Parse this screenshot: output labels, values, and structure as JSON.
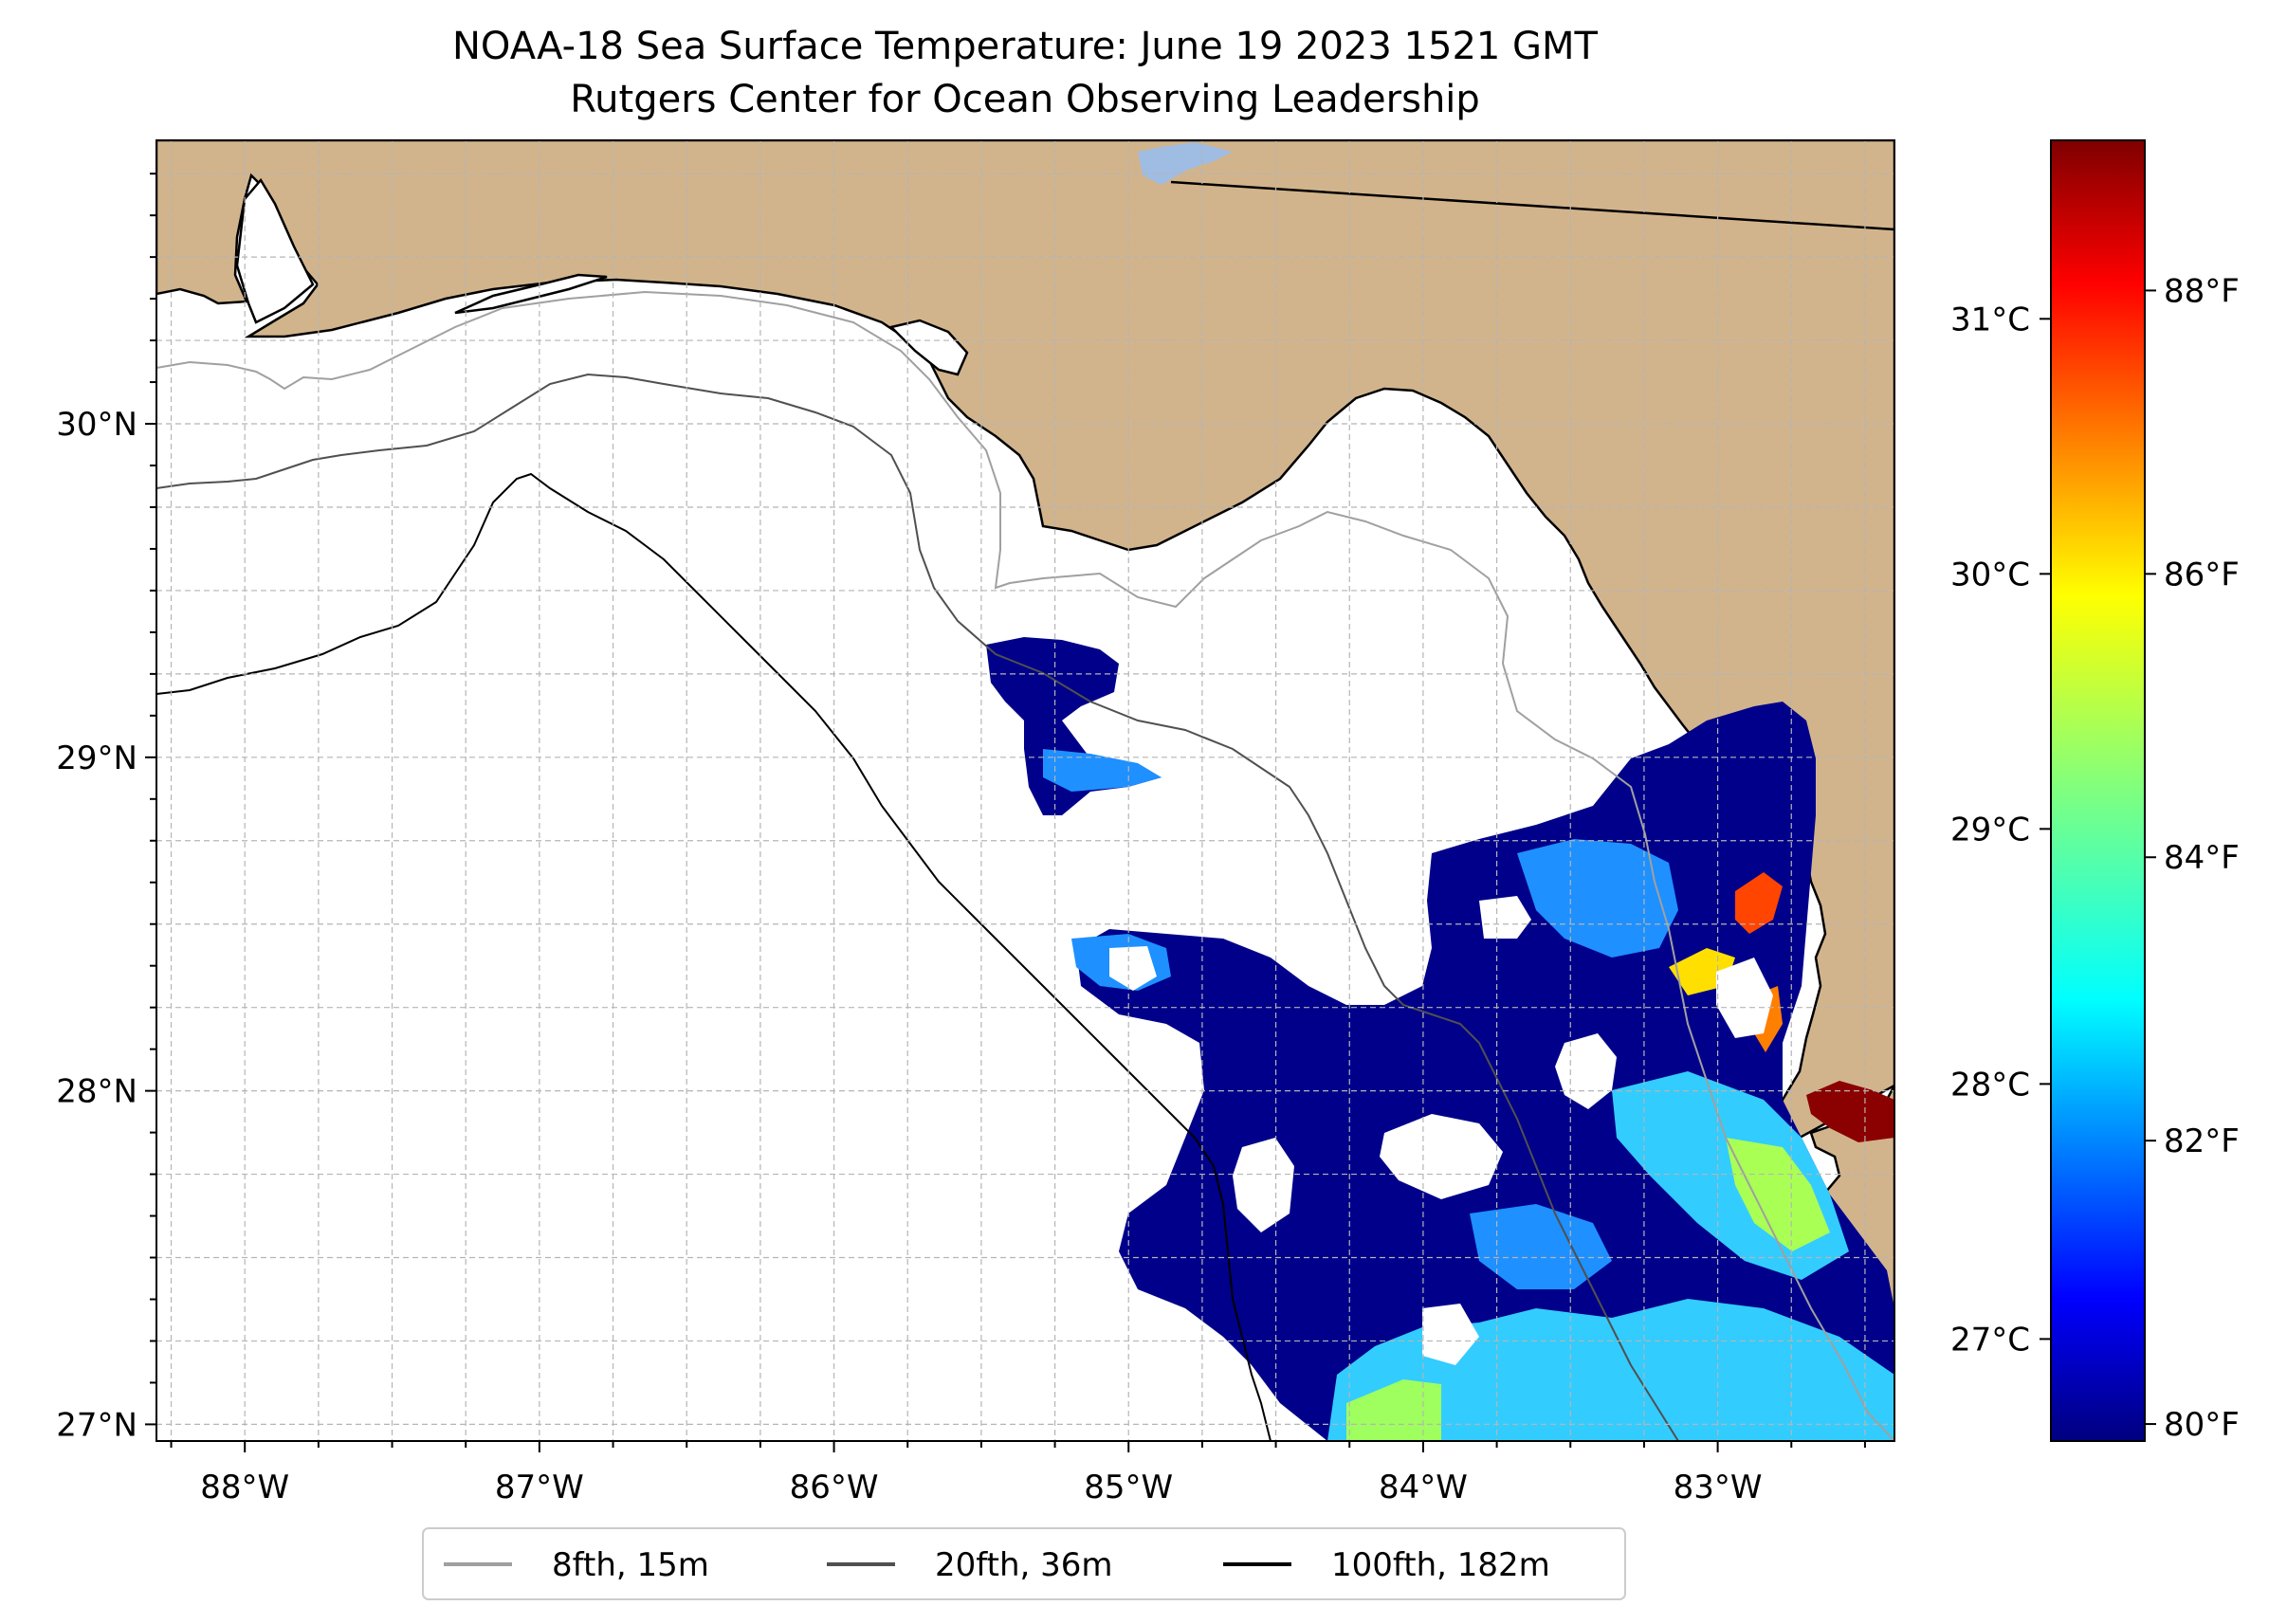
{
  "title": {
    "line1": "NOAA-18 Sea Surface Temperature: June 19 2023 1521 GMT",
    "line2": "Rutgers Center for Ocean Observing Leadership"
  },
  "map": {
    "lon_range": [
      -88.3,
      -82.4
    ],
    "lat_range": [
      26.95,
      30.85
    ],
    "lon_ticks": [
      {
        "value": -88,
        "label": "88°W"
      },
      {
        "value": -87,
        "label": "87°W"
      },
      {
        "value": -86,
        "label": "86°W"
      },
      {
        "value": -85,
        "label": "85°W"
      },
      {
        "value": -84,
        "label": "84°W"
      },
      {
        "value": -83,
        "label": "83°W"
      }
    ],
    "lat_ticks": [
      {
        "value": 27,
        "label": "27°N"
      },
      {
        "value": 28,
        "label": "28°N"
      },
      {
        "value": 29,
        "label": "29°N"
      },
      {
        "value": 30,
        "label": "30°N"
      }
    ],
    "colors": {
      "land": "#D2B48C",
      "ocean": "#ffffff",
      "lake": "#9fbce3",
      "grid": "#b5b5b5",
      "iso_8": "#a0a0a0",
      "iso_20": "#505050",
      "iso_100": "#000000"
    }
  },
  "colorbar": {
    "colormap": "jet",
    "celsius_range": [
      26.6,
      31.7
    ],
    "celsius_ticks": [
      {
        "value": 27,
        "label": "27°C"
      },
      {
        "value": 28,
        "label": "28°C"
      },
      {
        "value": 29,
        "label": "29°C"
      },
      {
        "value": 30,
        "label": "30°C"
      },
      {
        "value": 31,
        "label": "31°C"
      }
    ],
    "fahrenheit_ticks": [
      {
        "value": 80,
        "label": "80°F"
      },
      {
        "value": 82,
        "label": "82°F"
      },
      {
        "value": 84,
        "label": "84°F"
      },
      {
        "value": 86,
        "label": "86°F"
      },
      {
        "value": 88,
        "label": "88°F"
      }
    ]
  },
  "legend": {
    "entries": [
      {
        "label": "8fth, 15m",
        "color": "#a0a0a0"
      },
      {
        "label": "20fth, 36m",
        "color": "#505050"
      },
      {
        "label": "100fth, 182m",
        "color": "#000000"
      }
    ]
  }
}
